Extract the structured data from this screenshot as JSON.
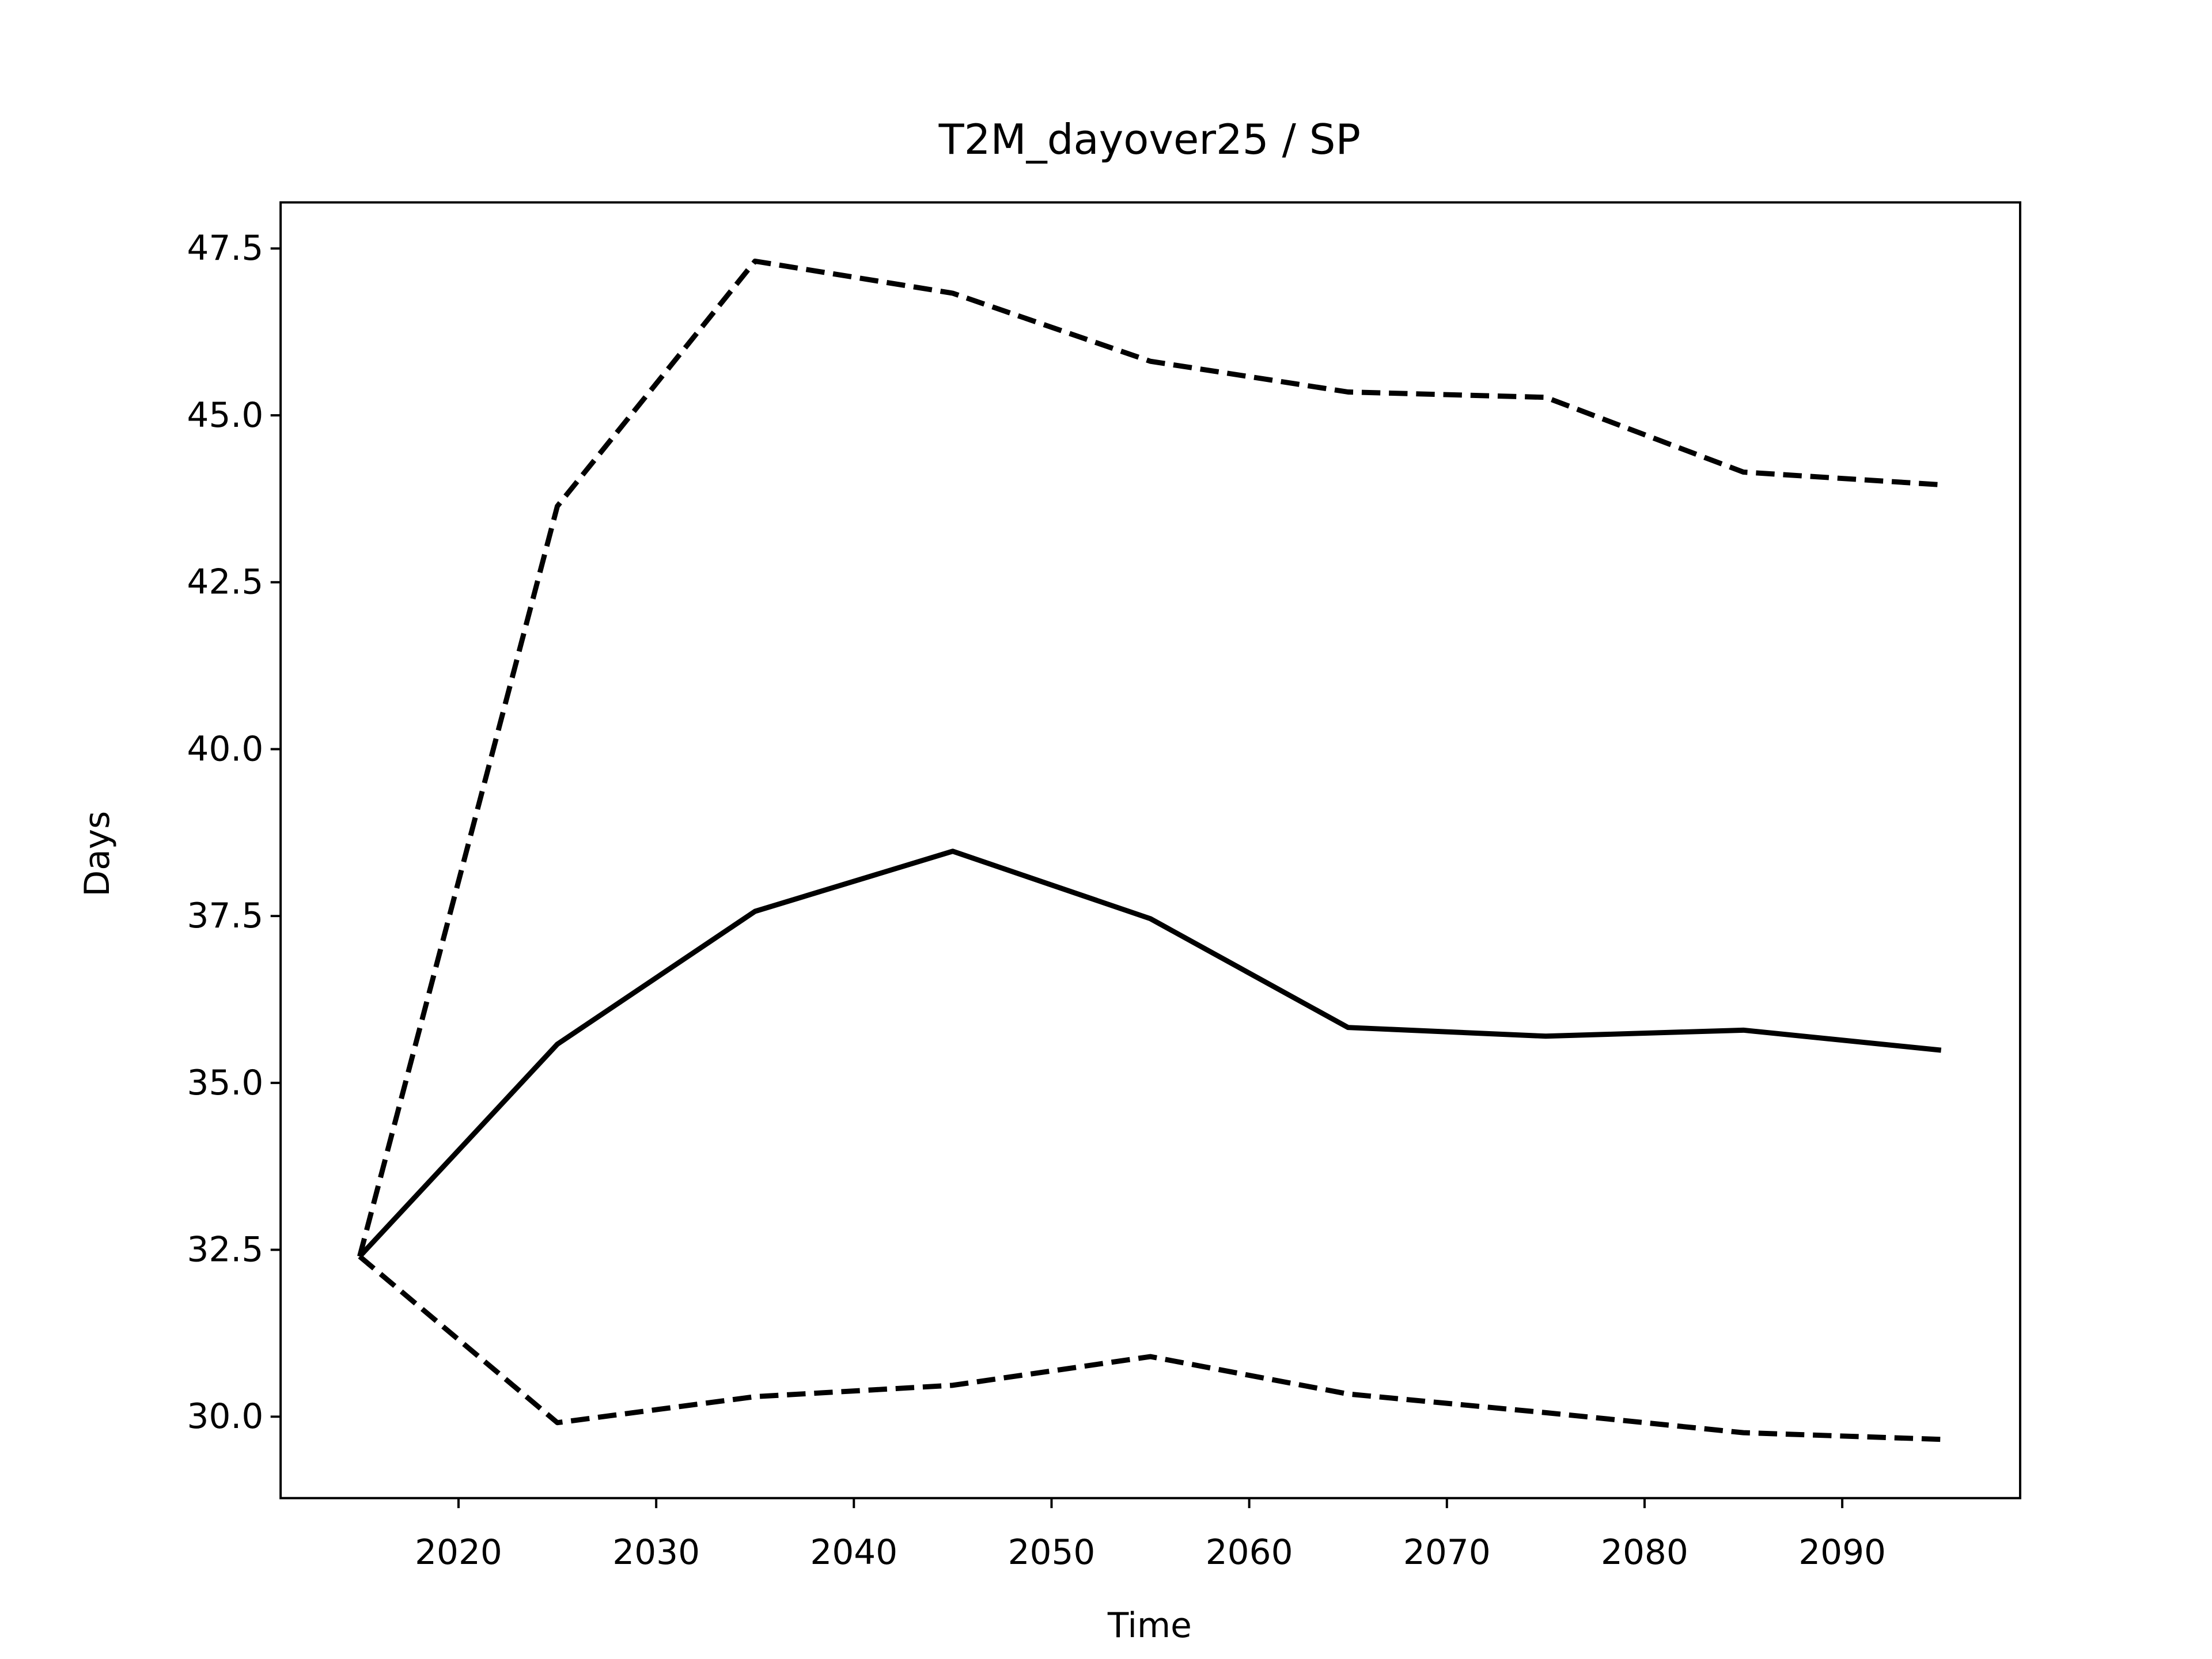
{
  "chart_data": {
    "type": "line",
    "title": "T2M_dayover25 / SP",
    "xlabel": "Time",
    "ylabel": "Days",
    "x": [
      2015,
      2025,
      2035,
      2045,
      2055,
      2065,
      2075,
      2085,
      2095
    ],
    "series": [
      {
        "color": "#000000",
        "dashed": false,
        "values": [
          32.4,
          35.58,
          37.57,
          38.47,
          37.46,
          35.83,
          35.7,
          35.79,
          35.49
        ]
      },
      {
        "color": "#000000",
        "dashed": true,
        "values": [
          32.4,
          43.64,
          47.31,
          46.83,
          45.81,
          45.35,
          45.27,
          44.15,
          43.96
        ]
      },
      {
        "color": "#000000",
        "dashed": true,
        "values": [
          32.4,
          29.91,
          30.3,
          30.47,
          30.9,
          30.34,
          30.06,
          29.76,
          29.66
        ]
      }
    ],
    "xlim": [
      2011,
      2099
    ],
    "ylim": [
      28.78,
      48.19
    ],
    "xticks": [
      2020,
      2030,
      2040,
      2050,
      2060,
      2070,
      2080,
      2090
    ],
    "yticks": [
      {
        "value": 30,
        "label": "30.0"
      },
      32.5,
      {
        "value": 35,
        "label": "35.0"
      },
      37.5,
      {
        "value": 40,
        "label": "40.0"
      },
      42.5,
      {
        "value": 45,
        "label": "45.0"
      },
      47.5
    ],
    "grid": false
  }
}
